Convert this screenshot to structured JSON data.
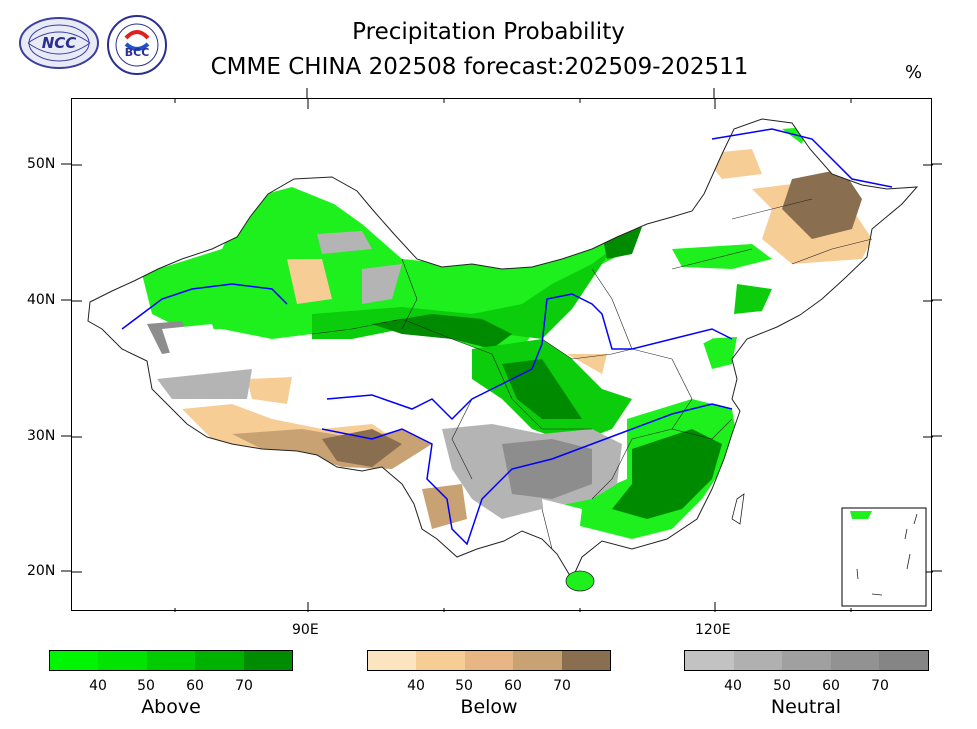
{
  "header": {
    "title_line1": "Precipitation Probability",
    "title_line2": "CMME CHINA 202508 forecast:202509-202511",
    "unit": "%",
    "logos": [
      "NCC",
      "BCC"
    ]
  },
  "axes": {
    "y_labels": [
      "50N",
      "40N",
      "30N",
      "20N"
    ],
    "x_labels": [
      "90E",
      "120E"
    ]
  },
  "colorbars": [
    {
      "name": "Above",
      "ticks": [
        "40",
        "50",
        "60",
        "70"
      ],
      "colors": [
        "#00f500",
        "#00e400",
        "#00cc00",
        "#00b200",
        "#008c00"
      ]
    },
    {
      "name": "Below",
      "ticks": [
        "40",
        "50",
        "60",
        "70"
      ],
      "colors": [
        "#fde4c0",
        "#f7cd96",
        "#e8b684",
        "#c9a273",
        "#8a6e50"
      ]
    },
    {
      "name": "Neutral",
      "ticks": [
        "40",
        "50",
        "60",
        "70"
      ],
      "colors": [
        "#c2c2c2",
        "#b0b0b0",
        "#a0a0a0",
        "#929292",
        "#858585"
      ]
    }
  ],
  "map_colors": {
    "above_light": "#1ef01e",
    "above_mid": "#0ccd0c",
    "above_dark": "#008a00",
    "below_light": "#f7cd96",
    "below_dark": "#8a6e50",
    "neutral_light": "#b4b4b4",
    "neutral_dark": "#8d8d8d",
    "river": "#0000ff",
    "border": "#222222"
  }
}
